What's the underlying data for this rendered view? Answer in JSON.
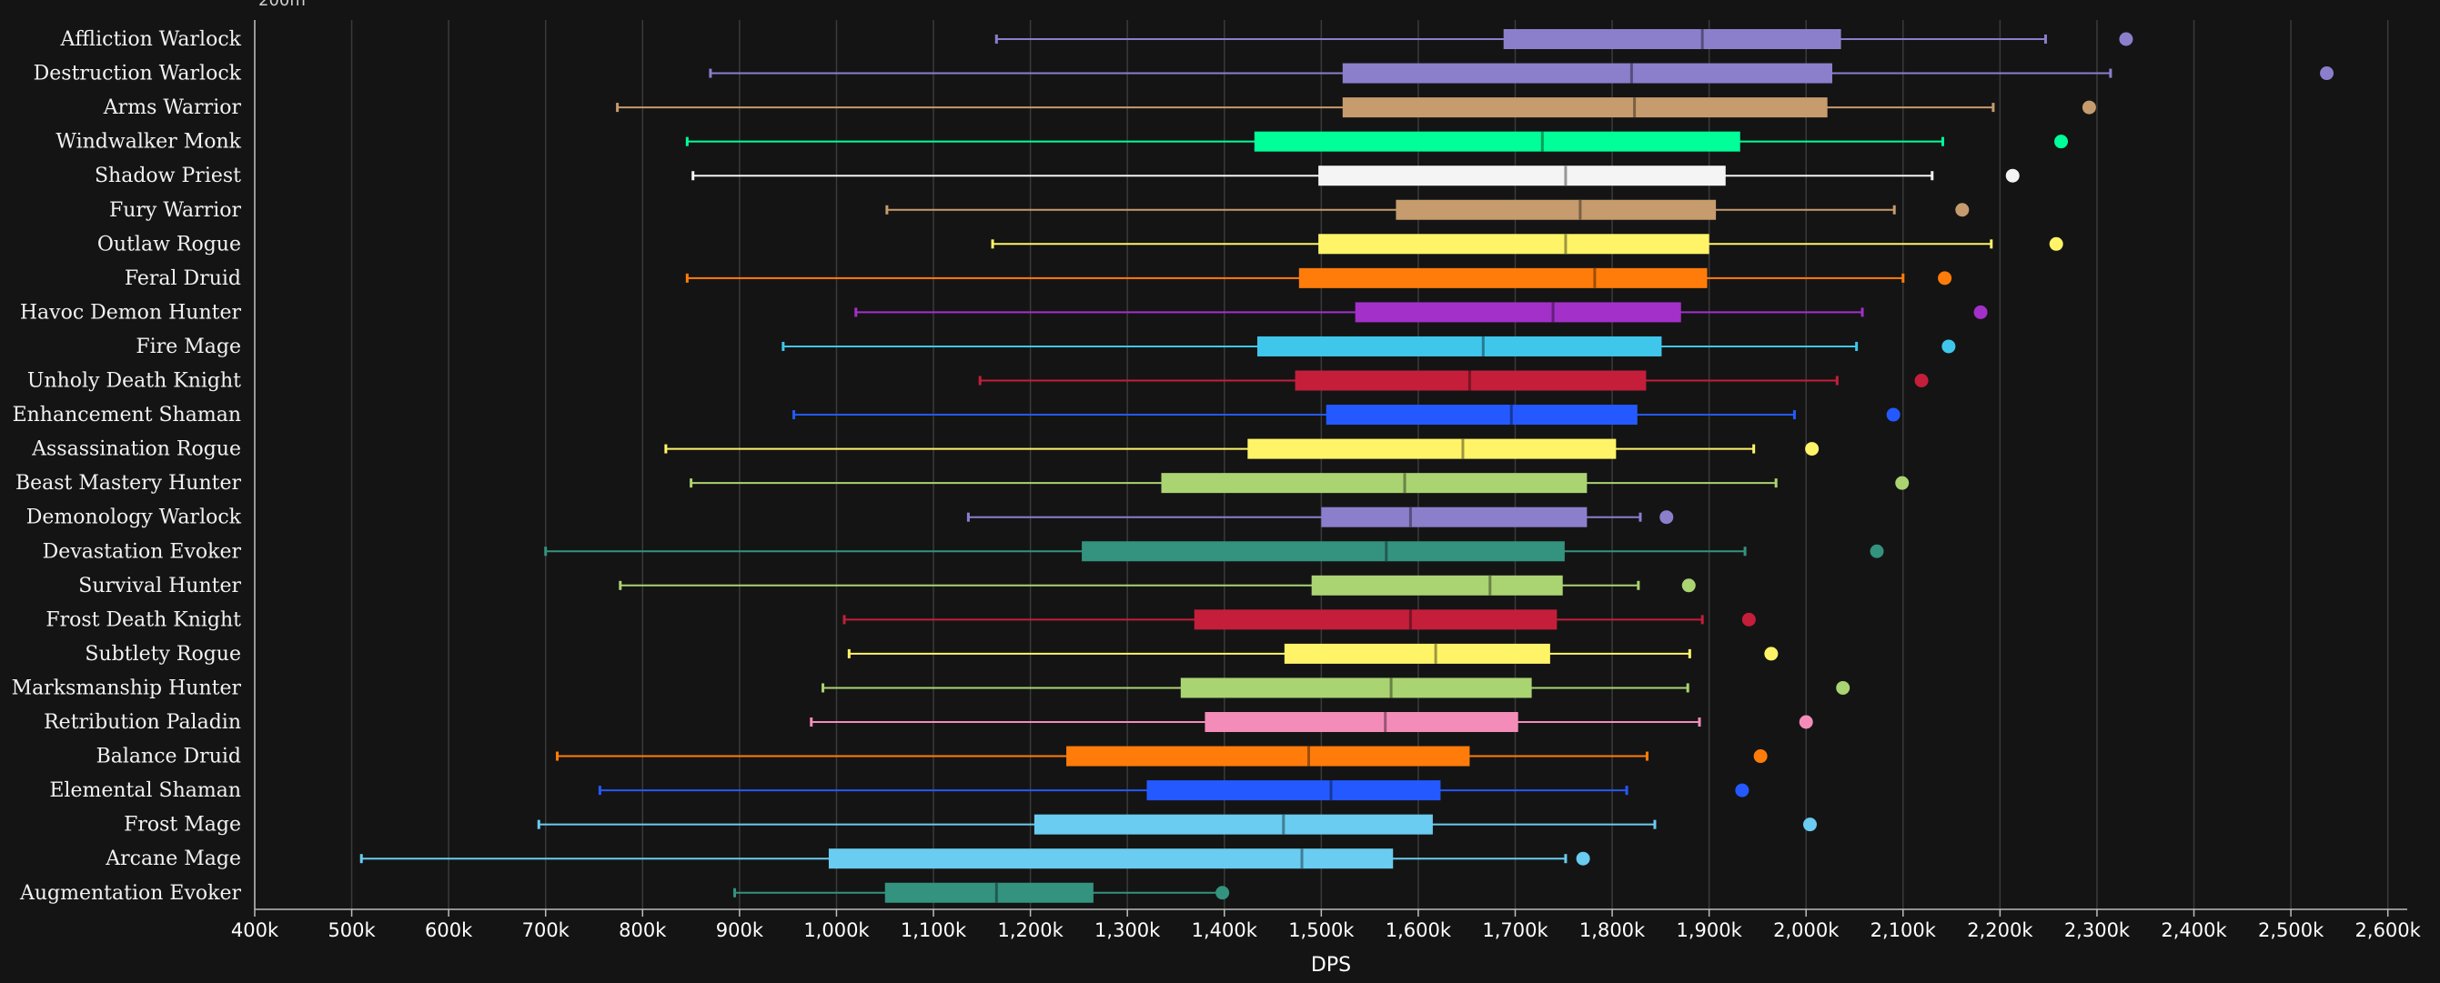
{
  "chart_data": {
    "type": "boxplot",
    "title": "",
    "top_label": "200m",
    "xlabel": "DPS",
    "xlim": [
      400000,
      2620000
    ],
    "ticks": [
      400000,
      500000,
      600000,
      700000,
      800000,
      900000,
      1000000,
      1100000,
      1200000,
      1300000,
      1400000,
      1500000,
      1600000,
      1700000,
      1800000,
      1900000,
      2000000,
      2100000,
      2200000,
      2300000,
      2400000,
      2500000,
      2600000
    ],
    "tick_labels": [
      "400k",
      "500k",
      "600k",
      "700k",
      "800k",
      "900k",
      "1,000k",
      "1,100k",
      "1,200k",
      "1,300k",
      "1,400k",
      "1,500k",
      "1,600k",
      "1,700k",
      "1,800k",
      "1,900k",
      "2,000k",
      "2,100k",
      "2,200k",
      "2,300k",
      "2,400k",
      "2,500k",
      "2,600k"
    ],
    "grid": true,
    "series": [
      {
        "name": "Affliction Warlock",
        "color": "#8b7fcc",
        "min": 1165000,
        "q1": 1688000,
        "median": 1893000,
        "q3": 2036000,
        "max": 2247000,
        "outlier": 2330000
      },
      {
        "name": "Destruction Warlock",
        "color": "#8b7fcc",
        "min": 870000,
        "q1": 1522000,
        "median": 1820000,
        "q3": 2027000,
        "max": 2314000,
        "outlier": 2537000
      },
      {
        "name": "Arms Warrior",
        "color": "#c69b6d",
        "min": 774000,
        "q1": 1522000,
        "median": 1823000,
        "q3": 2022000,
        "max": 2193000,
        "outlier": 2292000
      },
      {
        "name": "Windwalker Monk",
        "color": "#00ff98",
        "min": 846000,
        "q1": 1431000,
        "median": 1728000,
        "q3": 1932000,
        "max": 2141000,
        "outlier": 2263000
      },
      {
        "name": "Shadow Priest",
        "color": "#f4f4f4",
        "min": 852000,
        "q1": 1497000,
        "median": 1752000,
        "q3": 1917000,
        "max": 2130000,
        "outlier": 2213000
      },
      {
        "name": "Fury Warrior",
        "color": "#c69b6d",
        "min": 1052000,
        "q1": 1577000,
        "median": 1767000,
        "q3": 1907000,
        "max": 2091000,
        "outlier": 2161000
      },
      {
        "name": "Outlaw Rogue",
        "color": "#fff468",
        "min": 1161000,
        "q1": 1497000,
        "median": 1752000,
        "q3": 1900000,
        "max": 2191000,
        "outlier": 2258000
      },
      {
        "name": "Feral Druid",
        "color": "#ff7c0a",
        "min": 846000,
        "q1": 1477000,
        "median": 1782000,
        "q3": 1898000,
        "max": 2100000,
        "outlier": 2143000
      },
      {
        "name": "Havoc Demon Hunter",
        "color": "#a330c9",
        "min": 1020000,
        "q1": 1535000,
        "median": 1739000,
        "q3": 1871000,
        "max": 2058000,
        "outlier": 2180000
      },
      {
        "name": "Fire Mage",
        "color": "#3fc7eb",
        "min": 945000,
        "q1": 1434000,
        "median": 1667000,
        "q3": 1851000,
        "max": 2052000,
        "outlier": 2147000
      },
      {
        "name": "Unholy Death Knight",
        "color": "#c41e3a",
        "min": 1148000,
        "q1": 1473000,
        "median": 1653000,
        "q3": 1835000,
        "max": 2032000,
        "outlier": 2119000
      },
      {
        "name": "Enhancement Shaman",
        "color": "#2459ff",
        "min": 956000,
        "q1": 1505000,
        "median": 1696000,
        "q3": 1826000,
        "max": 1988000,
        "outlier": 2090000
      },
      {
        "name": "Assassination Rogue",
        "color": "#fff468",
        "min": 824000,
        "q1": 1424000,
        "median": 1646000,
        "q3": 1804000,
        "max": 1946000,
        "outlier": 2006000
      },
      {
        "name": "Beast Mastery Hunter",
        "color": "#aad372",
        "min": 850000,
        "q1": 1335000,
        "median": 1586000,
        "q3": 1774000,
        "max": 1969000,
        "outlier": 2099000
      },
      {
        "name": "Demonology Warlock",
        "color": "#8b7fcc",
        "min": 1136000,
        "q1": 1500000,
        "median": 1592000,
        "q3": 1774000,
        "max": 1829000,
        "outlier": 1856000
      },
      {
        "name": "Devastation Evoker",
        "color": "#33937f",
        "min": 700000,
        "q1": 1253000,
        "median": 1567000,
        "q3": 1751000,
        "max": 1937000,
        "outlier": 2073000
      },
      {
        "name": "Survival Hunter",
        "color": "#aad372",
        "min": 777000,
        "q1": 1490000,
        "median": 1674000,
        "q3": 1749000,
        "max": 1827000,
        "outlier": 1879000
      },
      {
        "name": "Frost Death Knight",
        "color": "#c41e3a",
        "min": 1008000,
        "q1": 1369000,
        "median": 1592000,
        "q3": 1743000,
        "max": 1893000,
        "outlier": 1941000
      },
      {
        "name": "Subtlety Rogue",
        "color": "#fff468",
        "min": 1013000,
        "q1": 1462000,
        "median": 1618000,
        "q3": 1736000,
        "max": 1880000,
        "outlier": 1964000
      },
      {
        "name": "Marksmanship Hunter",
        "color": "#aad372",
        "min": 986000,
        "q1": 1355000,
        "median": 1572000,
        "q3": 1717000,
        "max": 1878000,
        "outlier": 2038000
      },
      {
        "name": "Retribution Paladin",
        "color": "#f48cba",
        "min": 974000,
        "q1": 1380000,
        "median": 1566000,
        "q3": 1703000,
        "max": 1890000,
        "outlier": 2000000
      },
      {
        "name": "Balance Druid",
        "color": "#ff7c0a",
        "min": 712000,
        "q1": 1237000,
        "median": 1487000,
        "q3": 1653000,
        "max": 1836000,
        "outlier": 1953000
      },
      {
        "name": "Elemental Shaman",
        "color": "#2459ff",
        "min": 756000,
        "q1": 1320000,
        "median": 1510000,
        "q3": 1623000,
        "max": 1815000,
        "outlier": 1934000
      },
      {
        "name": "Frost Mage",
        "color": "#69ccf0",
        "min": 693000,
        "q1": 1204000,
        "median": 1461000,
        "q3": 1615000,
        "max": 1844000,
        "outlier": 2004000
      },
      {
        "name": "Arcane Mage",
        "color": "#69ccf0",
        "min": 510000,
        "q1": 992000,
        "median": 1480000,
        "q3": 1574000,
        "max": 1752000,
        "outlier": 1770000
      },
      {
        "name": "Augmentation Evoker",
        "color": "#33937f",
        "min": 895000,
        "q1": 1050000,
        "median": 1165000,
        "q3": 1265000,
        "max": 1396000,
        "outlier": 1398000
      }
    ]
  }
}
